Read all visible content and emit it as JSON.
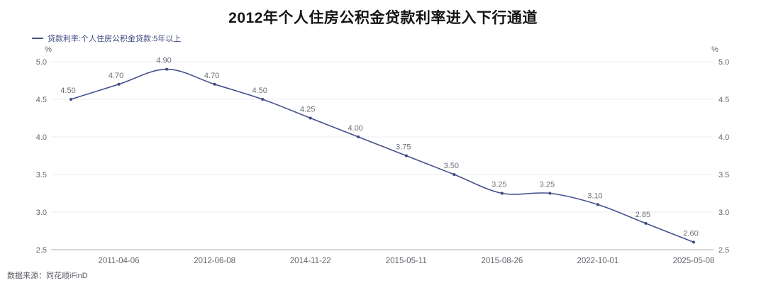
{
  "chart_data": {
    "type": "line",
    "title": "2012年个人住房公积金贷款利率进入下行通道",
    "legend": "贷款利率:个人住房公积金贷款:5年以上",
    "unit": "%",
    "values": [
      4.5,
      4.7,
      4.9,
      4.7,
      4.5,
      4.25,
      4.0,
      3.75,
      3.5,
      3.25,
      3.25,
      3.1,
      2.85,
      2.6
    ],
    "point_labels": [
      "4.50",
      "4.70",
      "4.90",
      "4.70",
      "4.50",
      "4.25",
      "4.00",
      "3.75",
      "3.50",
      "3.25",
      "3.25",
      "3.10",
      "2.85",
      "2.60"
    ],
    "x_tick_labels": [
      "2011-04-06",
      "2012-06-08",
      "2014-11-22",
      "2015-05-11",
      "2015-08-26",
      "2022-10-01",
      "2025-05-08"
    ],
    "x_tick_point_indices": [
      1,
      3,
      5,
      7,
      9,
      11,
      13
    ],
    "y_ticks": [
      "5.0",
      "4.5",
      "4.0",
      "3.5",
      "3.0",
      "2.5"
    ],
    "ylim": [
      2.5,
      5.0
    ],
    "grid": true,
    "legend_position": "top-left",
    "line_color": "#44508e",
    "marker_color": "#3d4984",
    "point_label_color": "#6a6f7a",
    "tick_label_color": "#63666d",
    "grid_color": "#eeedf2",
    "axis_color": "#c6cad3",
    "title_color": "#151515",
    "legend_color": "#3d4a80",
    "source": "数据来源：同花顺iFinD"
  }
}
